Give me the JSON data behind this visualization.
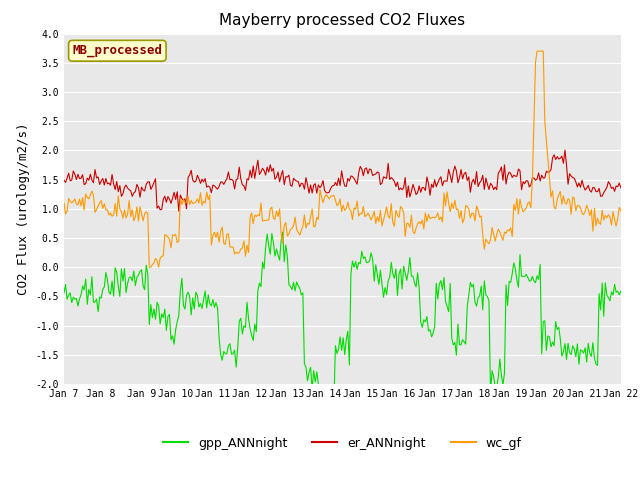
{
  "title": "Mayberry processed CO2 Fluxes",
  "ylabel": "CO2 Flux (urology/m2/s)",
  "ylim": [
    -2.0,
    4.0
  ],
  "yticks": [
    -2.0,
    -1.5,
    -1.0,
    -0.5,
    0.0,
    0.5,
    1.0,
    1.5,
    2.0,
    2.5,
    3.0,
    3.5,
    4.0
  ],
  "xlabels": [
    "Jan 7",
    "Jan 8",
    " Jan 9",
    "Jan 10",
    "Jan 11",
    "Jan 12",
    "Jan 13",
    "Jan 14",
    "Jan 15",
    "Jan 16",
    "Jan 17",
    "Jan 18",
    "Jan 19",
    "Jan 20",
    "Jan 21",
    "Jan 22"
  ],
  "colors": {
    "gpp": "#00dd00",
    "er": "#cc0000",
    "wc": "#ff9900"
  },
  "legend_entries": [
    "gpp_ANNnight",
    "er_ANNnight",
    "wc_gf"
  ],
  "legend_colors": [
    "#00dd00",
    "#cc0000",
    "#ff9900"
  ],
  "watermark_text": "MB_processed",
  "watermark_color": "#8b0000",
  "watermark_bg": "#ffffcc",
  "watermark_border": "#999900",
  "bg_color": "#e8e8e8",
  "n_points": 360,
  "title_fontsize": 11,
  "axis_label_fontsize": 9,
  "tick_fontsize": 7,
  "legend_fontsize": 9
}
